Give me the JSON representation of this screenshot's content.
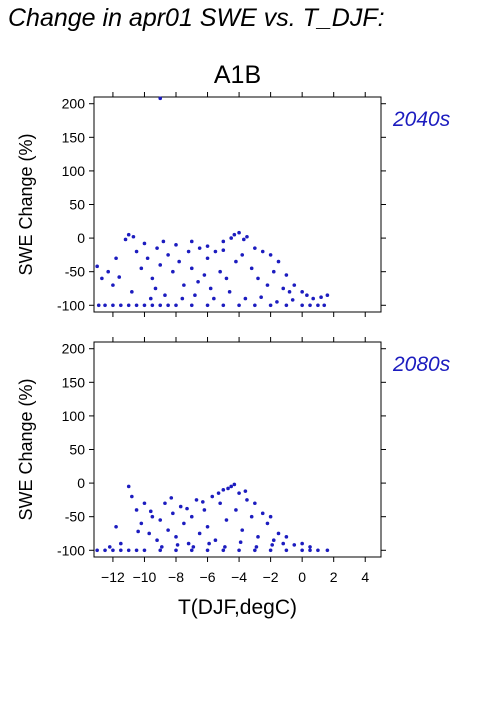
{
  "title": "Change in apr01 SWE vs. T_DJF:",
  "colors": {
    "points": "#1c1cbf",
    "axis": "#000000",
    "panel_label": "#1c1cbf"
  },
  "chart_data": [
    {
      "type": "scatter",
      "title": "A1B",
      "panel_label": "2040s",
      "xlabel": "T(DJF,degC)",
      "ylabel": "SWE Change (%)",
      "xlim": [
        -13.2,
        5
      ],
      "ylim": [
        -110,
        210
      ],
      "xticks": [
        -12,
        -10,
        -8,
        -6,
        -4,
        -2,
        0,
        2,
        4
      ],
      "yticks": [
        -100,
        -50,
        0,
        50,
        100,
        150,
        200
      ],
      "grid": false,
      "series": [
        {
          "points": [
            [
              -9.0,
              208
            ],
            [
              -12.9,
              -100
            ],
            [
              -12.5,
              -100
            ],
            [
              -12.0,
              -100
            ],
            [
              -11.5,
              -100
            ],
            [
              -11.0,
              -100
            ],
            [
              -10.5,
              -100
            ],
            [
              -10.0,
              -100
            ],
            [
              -9.5,
              -100
            ],
            [
              -9.0,
              -100
            ],
            [
              -8.5,
              -100
            ],
            [
              -8.0,
              -100
            ],
            [
              -7.0,
              -100
            ],
            [
              -6.0,
              -100
            ],
            [
              -5.0,
              -100
            ],
            [
              -4.0,
              -100
            ],
            [
              -3.0,
              -100
            ],
            [
              -2.0,
              -100
            ],
            [
              -1.0,
              -100
            ],
            [
              0.0,
              -100
            ],
            [
              0.5,
              -100
            ],
            [
              1.0,
              -100
            ],
            [
              1.4,
              -100
            ],
            [
              -13.0,
              -42
            ],
            [
              -12.7,
              -60
            ],
            [
              -12.3,
              -50
            ],
            [
              -12.0,
              -70
            ],
            [
              -11.6,
              -58
            ],
            [
              -11.2,
              -2
            ],
            [
              -11.0,
              5
            ],
            [
              -10.7,
              2
            ],
            [
              -10.5,
              -20
            ],
            [
              -10.2,
              -45
            ],
            [
              -10.0,
              -8
            ],
            [
              -9.8,
              -30
            ],
            [
              -9.5,
              -60
            ],
            [
              -9.2,
              -15
            ],
            [
              -9.0,
              -40
            ],
            [
              -8.8,
              -5
            ],
            [
              -8.5,
              -25
            ],
            [
              -8.2,
              -50
            ],
            [
              -8.0,
              -10
            ],
            [
              -7.8,
              -35
            ],
            [
              -7.5,
              -70
            ],
            [
              -7.2,
              -20
            ],
            [
              -7.0,
              -45
            ],
            [
              -6.8,
              -85
            ],
            [
              -6.5,
              -15
            ],
            [
              -6.2,
              -55
            ],
            [
              -6.0,
              -30
            ],
            [
              -5.8,
              -75
            ],
            [
              -5.5,
              -20
            ],
            [
              -5.2,
              -50
            ],
            [
              -5.0,
              -5
            ],
            [
              -4.8,
              -60
            ],
            [
              -4.5,
              0
            ],
            [
              -4.2,
              -35
            ],
            [
              -4.0,
              8
            ],
            [
              -3.8,
              -25
            ],
            [
              -3.5,
              2
            ],
            [
              -3.2,
              -45
            ],
            [
              -3.0,
              -15
            ],
            [
              -2.8,
              -60
            ],
            [
              -2.5,
              -20
            ],
            [
              -2.2,
              -70
            ],
            [
              -2.0,
              -25
            ],
            [
              -1.8,
              -50
            ],
            [
              -1.5,
              -35
            ],
            [
              -1.2,
              -75
            ],
            [
              -1.0,
              -55
            ],
            [
              -0.8,
              -80
            ],
            [
              -0.5,
              -70
            ],
            [
              0.0,
              -80
            ],
            [
              0.3,
              -85
            ],
            [
              0.7,
              -90
            ],
            [
              1.2,
              -88
            ],
            [
              1.6,
              -85
            ],
            [
              -11.8,
              -30
            ],
            [
              -10.8,
              -80
            ],
            [
              -9.6,
              -90
            ],
            [
              -8.7,
              -85
            ],
            [
              -7.6,
              -90
            ],
            [
              -6.6,
              -65
            ],
            [
              -5.6,
              -90
            ],
            [
              -4.6,
              -80
            ],
            [
              -3.6,
              -90
            ],
            [
              -2.6,
              -88
            ],
            [
              -1.6,
              -95
            ],
            [
              -0.6,
              -92
            ],
            [
              -7.0,
              -5
            ],
            [
              -6.0,
              -12
            ],
            [
              -5.0,
              -18
            ],
            [
              -4.3,
              5
            ],
            [
              -3.7,
              -2
            ],
            [
              -9.3,
              -75
            ]
          ]
        }
      ]
    },
    {
      "type": "scatter",
      "title": "",
      "panel_label": "2080s",
      "xlabel": "T(DJF,degC)",
      "ylabel": "SWE Change (%)",
      "xlim": [
        -13.2,
        5
      ],
      "ylim": [
        -110,
        210
      ],
      "xticks": [
        -12,
        -10,
        -8,
        -6,
        -4,
        -2,
        0,
        2,
        4
      ],
      "xticklabels": [
        "−12",
        "−10",
        "−8",
        "−6",
        "−4",
        "−2",
        "0",
        "2",
        "4"
      ],
      "yticks": [
        -100,
        -50,
        0,
        50,
        100,
        150,
        200
      ],
      "grid": false,
      "series": [
        {
          "points": [
            [
              -13.0,
              -100
            ],
            [
              -12.5,
              -100
            ],
            [
              -12.0,
              -100
            ],
            [
              -11.5,
              -100
            ],
            [
              -11.0,
              -100
            ],
            [
              -10.5,
              -100
            ],
            [
              -10.0,
              -100
            ],
            [
              -9.0,
              -100
            ],
            [
              -8.0,
              -100
            ],
            [
              -7.0,
              -100
            ],
            [
              -6.0,
              -100
            ],
            [
              -5.0,
              -100
            ],
            [
              -4.0,
              -100
            ],
            [
              -3.0,
              -100
            ],
            [
              -2.0,
              -100
            ],
            [
              -1.0,
              -100
            ],
            [
              0.0,
              -100
            ],
            [
              0.5,
              -100
            ],
            [
              1.0,
              -100
            ],
            [
              1.6,
              -100
            ],
            [
              -11.0,
              -5
            ],
            [
              -10.8,
              -20
            ],
            [
              -10.5,
              -40
            ],
            [
              -10.2,
              -60
            ],
            [
              -10.0,
              -30
            ],
            [
              -9.7,
              -75
            ],
            [
              -9.5,
              -50
            ],
            [
              -9.2,
              -85
            ],
            [
              -9.0,
              -55
            ],
            [
              -8.7,
              -30
            ],
            [
              -8.5,
              -70
            ],
            [
              -8.2,
              -45
            ],
            [
              -8.0,
              -80
            ],
            [
              -7.7,
              -35
            ],
            [
              -7.5,
              -60
            ],
            [
              -7.2,
              -90
            ],
            [
              -7.0,
              -50
            ],
            [
              -6.7,
              -25
            ],
            [
              -6.5,
              -75
            ],
            [
              -6.2,
              -40
            ],
            [
              -6.0,
              -65
            ],
            [
              -5.7,
              -20
            ],
            [
              -5.5,
              -85
            ],
            [
              -5.2,
              -30
            ],
            [
              -5.0,
              -10
            ],
            [
              -4.8,
              -55
            ],
            [
              -4.5,
              -5
            ],
            [
              -4.2,
              -40
            ],
            [
              -4.0,
              -15
            ],
            [
              -3.8,
              -70
            ],
            [
              -3.5,
              -25
            ],
            [
              -3.2,
              -50
            ],
            [
              -3.0,
              -30
            ],
            [
              -2.8,
              -80
            ],
            [
              -2.5,
              -45
            ],
            [
              -2.2,
              -60
            ],
            [
              -2.0,
              -50
            ],
            [
              -1.8,
              -85
            ],
            [
              -1.5,
              -75
            ],
            [
              -1.2,
              -90
            ],
            [
              -1.0,
              -80
            ],
            [
              -0.5,
              -92
            ],
            [
              0.0,
              -90
            ],
            [
              0.5,
              -95
            ],
            [
              -11.8,
              -65
            ],
            [
              -11.5,
              -90
            ],
            [
              -12.2,
              -95
            ],
            [
              -8.9,
              -95
            ],
            [
              -7.9,
              -92
            ],
            [
              -6.9,
              -95
            ],
            [
              -5.9,
              -90
            ],
            [
              -4.9,
              -95
            ],
            [
              -3.9,
              -88
            ],
            [
              -2.9,
              -95
            ],
            [
              -1.9,
              -92
            ],
            [
              -4.3,
              -2
            ],
            [
              -4.7,
              -8
            ],
            [
              -3.6,
              -12
            ],
            [
              -5.3,
              -15
            ],
            [
              -6.3,
              -28
            ],
            [
              -7.3,
              -38
            ],
            [
              -8.3,
              -22
            ],
            [
              -9.6,
              -42
            ],
            [
              -10.4,
              -72
            ]
          ]
        }
      ]
    }
  ]
}
